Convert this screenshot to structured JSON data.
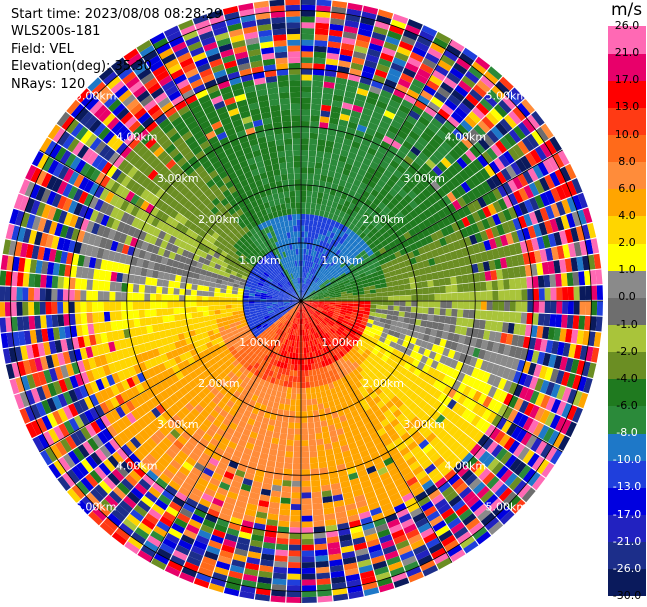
{
  "meta": {
    "start_time": "Start time: 2023/08/08 08:28:29",
    "station": "WLS200s-181",
    "field": "Field: VEL",
    "elevation": "Elevation(deg): 35.30",
    "nrays": "NRays: 120"
  },
  "colorbar": {
    "unit": "m/s",
    "colors": [
      "#0a1a5c",
      "#1c2e8a",
      "#2222c0",
      "#0000e0",
      "#1f3fdc",
      "#1e78c8",
      "#2b8a3a",
      "#1f7a1f",
      "#6b8e23",
      "#a9c43a",
      "#6e6e6e",
      "#8a8a8a",
      "#ffff00",
      "#ffd500",
      "#ffa500",
      "#ff8c3a",
      "#ff6a1a",
      "#ff3a14",
      "#ff0000",
      "#e8006a",
      "#ff69b4"
    ],
    "ticks": [
      "-30.0",
      "-26.0",
      "-21.0",
      "-17.0",
      "-13.0",
      "-10.0",
      "-8.0",
      "-6.0",
      "-4.0",
      "-2.0",
      "-1.0",
      "0.0",
      "1.0",
      "2.0",
      "4.0",
      "6.0",
      "8.0",
      "10.0",
      "13.0",
      "17.0",
      "21.0",
      "26.0"
    ]
  },
  "chart_data": {
    "type": "heatmap",
    "subtype": "PPI radar scan (polar)",
    "field": "VEL",
    "unit": "m/s",
    "n_rays": 120,
    "range_rings_km": [
      "1.00km",
      "2.00km",
      "3.00km",
      "4.00km",
      "5.00km"
    ],
    "max_range_km": 5.2,
    "value_range": [
      -30,
      26
    ],
    "notes_visible": "Near the center (within ~1.5 km) velocities are blue to the west/north-west and red/orange to the south-east; middle ring band shows green (negative) to the north and yellow/orange (positive) to the south; beyond ~4 km the field is noisy with all colors."
  }
}
